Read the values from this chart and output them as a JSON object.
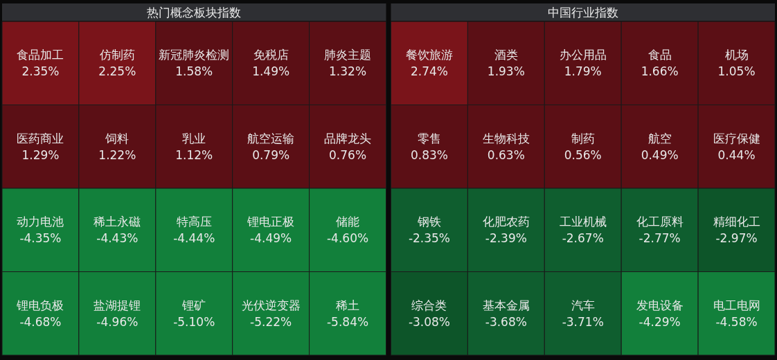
{
  "chart_data": [
    {
      "type": "other",
      "title": "热门概念板块指数",
      "categories": [
        "食品加工",
        "仿制药",
        "新冠肺炎检测",
        "免税店",
        "肺炎主题",
        "医药商业",
        "饲料",
        "乳业",
        "航空运输",
        "品牌龙头",
        "动力电池",
        "稀土永磁",
        "特高压",
        "锂电正极",
        "储能",
        "锂电负极",
        "盐湖提锂",
        "锂矿",
        "光伏逆变器",
        "稀土"
      ],
      "values": [
        2.35,
        2.25,
        1.58,
        1.49,
        1.32,
        1.29,
        1.22,
        1.12,
        0.79,
        0.76,
        -4.35,
        -4.43,
        -4.44,
        -4.49,
        -4.6,
        -4.68,
        -4.96,
        -5.1,
        -5.22,
        -5.84
      ],
      "value_labels": [
        "2.35%",
        "2.25%",
        "1.58%",
        "1.49%",
        "1.32%",
        "1.29%",
        "1.22%",
        "1.12%",
        "0.79%",
        "0.76%",
        "-4.35%",
        "-4.43%",
        "-4.44%",
        "-4.49%",
        "-4.60%",
        "-4.68%",
        "-4.96%",
        "-5.10%",
        "-5.22%",
        "-5.84%"
      ],
      "colors": [
        "#7a141a",
        "#7a141a",
        "#5b0f15",
        "#5b0f15",
        "#5b0f15",
        "#5b0f15",
        "#5b0f15",
        "#5b0f15",
        "#5b0f15",
        "#5b0f15",
        "#12803b",
        "#12803b",
        "#12803b",
        "#12803b",
        "#12803b",
        "#12803b",
        "#12803b",
        "#12803b",
        "#12803b",
        "#12803b"
      ]
    },
    {
      "type": "other",
      "title": "中国行业指数",
      "categories": [
        "餐饮旅游",
        "酒类",
        "办公用品",
        "食品",
        "机场",
        "零售",
        "生物科技",
        "制药",
        "航空",
        "医疗保健",
        "钢铁",
        "化肥农药",
        "工业机械",
        "化工原料",
        "精细化工",
        "综合类",
        "基本金属",
        "汽车",
        "发电设备",
        "电工电网"
      ],
      "values": [
        2.74,
        1.93,
        1.79,
        1.66,
        1.05,
        0.83,
        0.63,
        0.56,
        0.49,
        0.44,
        -2.35,
        -2.39,
        -2.67,
        -2.77,
        -2.97,
        -3.08,
        -3.68,
        -3.71,
        -4.29,
        -4.58
      ],
      "value_labels": [
        "2.74%",
        "1.93%",
        "1.79%",
        "1.66%",
        "1.05%",
        "0.83%",
        "0.63%",
        "0.56%",
        "0.49%",
        "0.44%",
        "-2.35%",
        "-2.39%",
        "-2.67%",
        "-2.77%",
        "-2.97%",
        "-3.08%",
        "-3.68%",
        "-3.71%",
        "-4.29%",
        "-4.58%"
      ],
      "colors": [
        "#7a141a",
        "#5b0f15",
        "#5b0f15",
        "#5b0f15",
        "#5b0f15",
        "#5b0f15",
        "#5b0f15",
        "#5b0f15",
        "#5b0f15",
        "#5b0f15",
        "#0f5e2f",
        "#0f5e2f",
        "#0f5e2f",
        "#0f5e2f",
        "#0d5529",
        "#0d5529",
        "#0f5e2f",
        "#0f5e2f",
        "#12803b",
        "#12803b"
      ]
    }
  ]
}
